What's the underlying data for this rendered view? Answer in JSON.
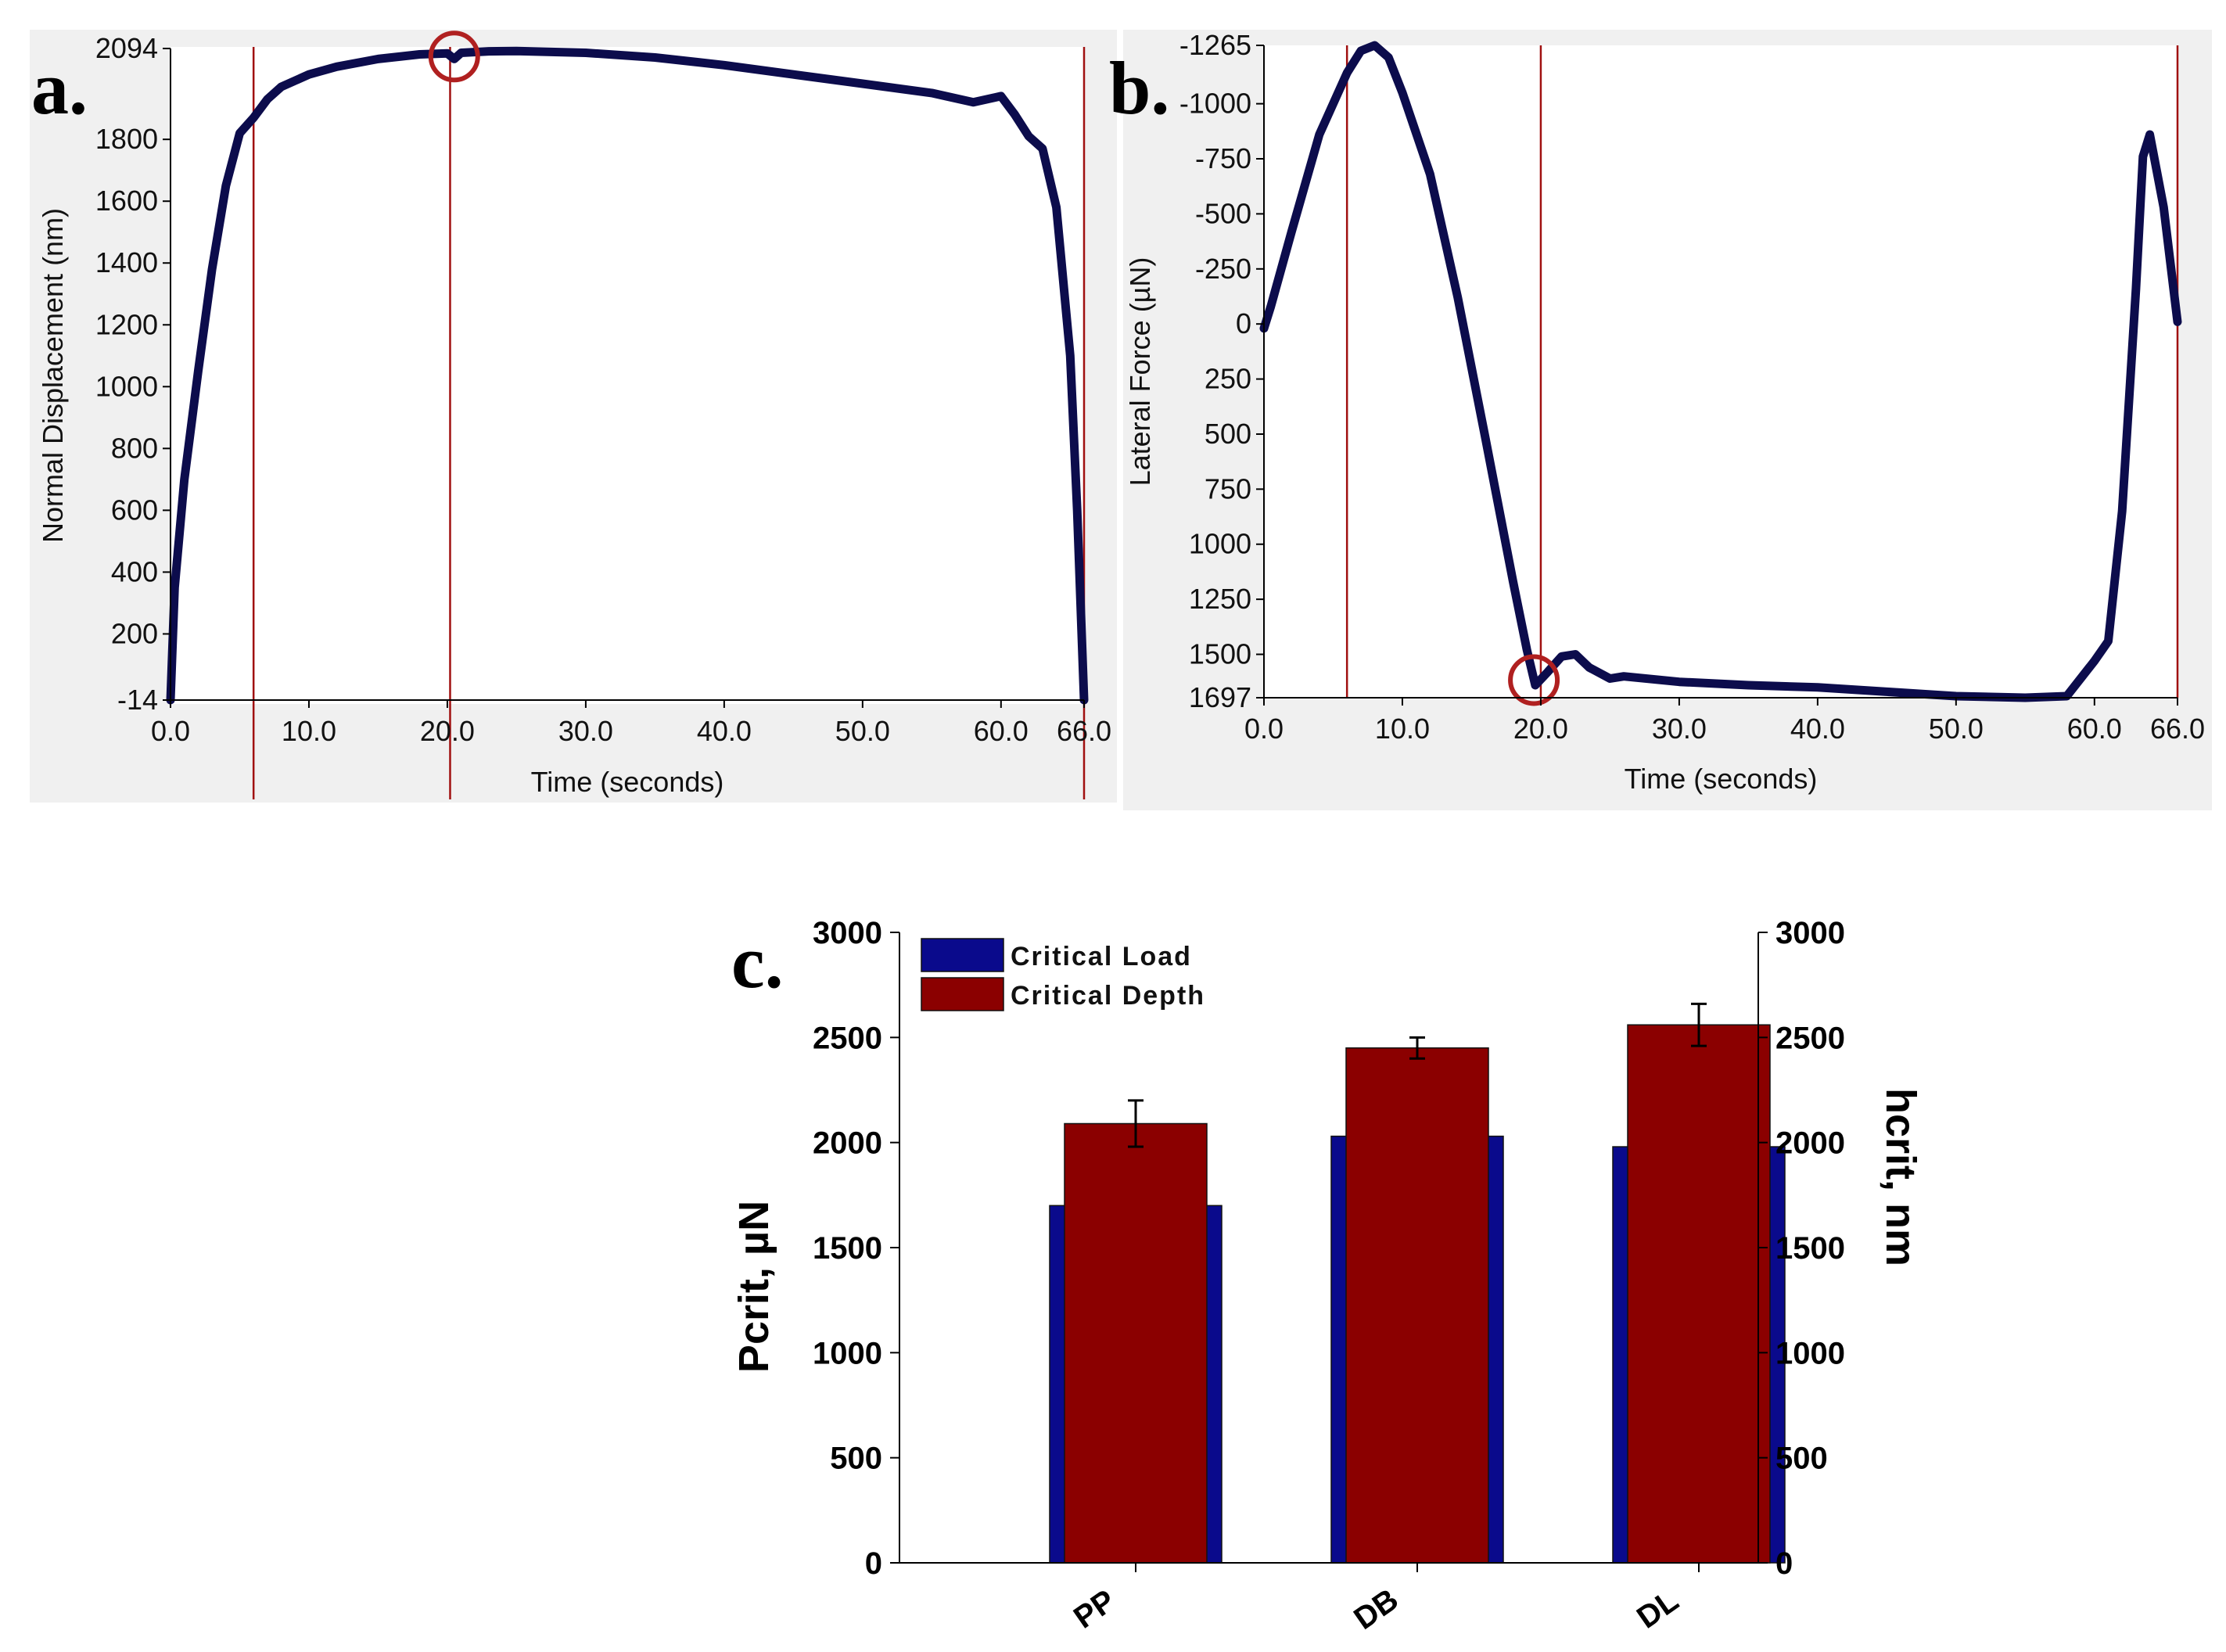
{
  "colors": {
    "curve": "#0c0c4c",
    "marker": "#a01010",
    "critical_load": "#0a0a8c",
    "critical_depth": "#8b0000"
  },
  "chart_data": [
    {
      "id": "a",
      "type": "line",
      "panel_label": "a.",
      "xlabel": "Time (seconds)",
      "ylabel": "Normal Displacement (nm)",
      "xlim": [
        0,
        66
      ],
      "ylim": [
        2094,
        -14
      ],
      "x_tick_values": [
        0,
        10,
        20,
        30,
        40,
        50,
        60,
        66
      ],
      "x_tick_labels": [
        "0.0",
        "10.0",
        "20.0",
        "30.0",
        "40.0",
        "50.0",
        "60.0",
        "66.0"
      ],
      "y_tick_values": [
        -14,
        200,
        400,
        600,
        800,
        1000,
        1200,
        1400,
        1600,
        1800,
        2094
      ],
      "y_tick_labels": [
        "-14",
        "200",
        "400",
        "600",
        "800",
        "1000",
        "1200",
        "1400",
        "1600",
        "1800",
        "2094"
      ],
      "vertical_markers": [
        6,
        20.2,
        66
      ],
      "circle_at": [
        20.5,
        2068
      ],
      "series": [
        {
          "name": "Normal Displacement",
          "x": [
            0,
            0.3,
            1,
            2,
            3,
            4,
            5,
            6,
            7,
            8,
            10,
            12,
            15,
            18,
            20,
            20.5,
            21,
            23,
            25,
            30,
            35,
            40,
            45,
            50,
            55,
            58,
            60,
            61,
            62,
            63,
            64,
            65,
            65.5,
            66
          ],
          "y": [
            -14,
            350,
            700,
            1050,
            1380,
            1650,
            1820,
            1870,
            1930,
            1970,
            2010,
            2035,
            2060,
            2075,
            2078,
            2060,
            2080,
            2085,
            2086,
            2080,
            2065,
            2040,
            2010,
            1980,
            1950,
            1920,
            1940,
            1880,
            1810,
            1770,
            1580,
            1100,
            600,
            -14
          ]
        }
      ]
    },
    {
      "id": "b",
      "type": "line",
      "panel_label": "b.",
      "xlabel": "Time (seconds)",
      "ylabel": "Lateral Force (µN)",
      "xlim": [
        0,
        66
      ],
      "ylim": [
        -1265,
        1697
      ],
      "x_tick_values": [
        0,
        10,
        20,
        30,
        40,
        50,
        60,
        66
      ],
      "x_tick_labels": [
        "0.0",
        "10.0",
        "20.0",
        "30.0",
        "40.0",
        "50.0",
        "60.0",
        "66.0"
      ],
      "y_tick_values": [
        1697,
        1500,
        1250,
        1000,
        750,
        500,
        250,
        0,
        -250,
        -500,
        -750,
        -1000,
        -1265
      ],
      "y_tick_labels": [
        "1697",
        "1500",
        "1250",
        "1000",
        "750",
        "500",
        "250",
        "0",
        "-250",
        "-500",
        "-750",
        "-1000",
        "-1265"
      ],
      "vertical_markers": [
        6,
        20,
        66
      ],
      "circle_at": [
        19.5,
        1617
      ],
      "series": [
        {
          "name": "Lateral Force",
          "x": [
            0,
            0.5,
            2,
            4,
            6,
            7,
            8,
            9,
            10,
            12,
            14,
            16,
            18,
            19,
            19.6,
            20.5,
            21.5,
            22.5,
            23.5,
            25,
            26,
            30,
            35,
            40,
            45,
            50,
            55,
            58,
            60,
            61,
            62,
            63,
            63.5,
            64,
            65,
            66
          ],
          "y": [
            20,
            -80,
            -420,
            -860,
            -1140,
            -1240,
            -1265,
            -1210,
            -1050,
            -680,
            -120,
            520,
            1170,
            1480,
            1640,
            1580,
            1510,
            1500,
            1560,
            1610,
            1600,
            1625,
            1640,
            1650,
            1670,
            1690,
            1697,
            1690,
            1530,
            1440,
            850,
            -160,
            -760,
            -860,
            -530,
            -10
          ]
        }
      ]
    },
    {
      "id": "c",
      "type": "bar",
      "panel_label": "c.",
      "categories": [
        "PP",
        "DB",
        "DL"
      ],
      "ylabel_left": "Pcrit, µN",
      "ylabel_right": "hcrit, nm",
      "ylim": [
        0,
        3000
      ],
      "y_tick_values": [
        0,
        500,
        1000,
        1500,
        2000,
        2500,
        3000
      ],
      "y_tick_labels": [
        "0",
        "500",
        "1000",
        "1500",
        "2000",
        "2500",
        "3000"
      ],
      "series": [
        {
          "name": "Critical Load",
          "axis": "left",
          "values": [
            1700,
            2030,
            1980
          ],
          "errors": [
            0,
            0,
            0
          ]
        },
        {
          "name": "Critical Depth",
          "axis": "right",
          "values": [
            2090,
            2450,
            2560
          ],
          "errors": [
            110,
            50,
            100
          ]
        }
      ]
    }
  ]
}
